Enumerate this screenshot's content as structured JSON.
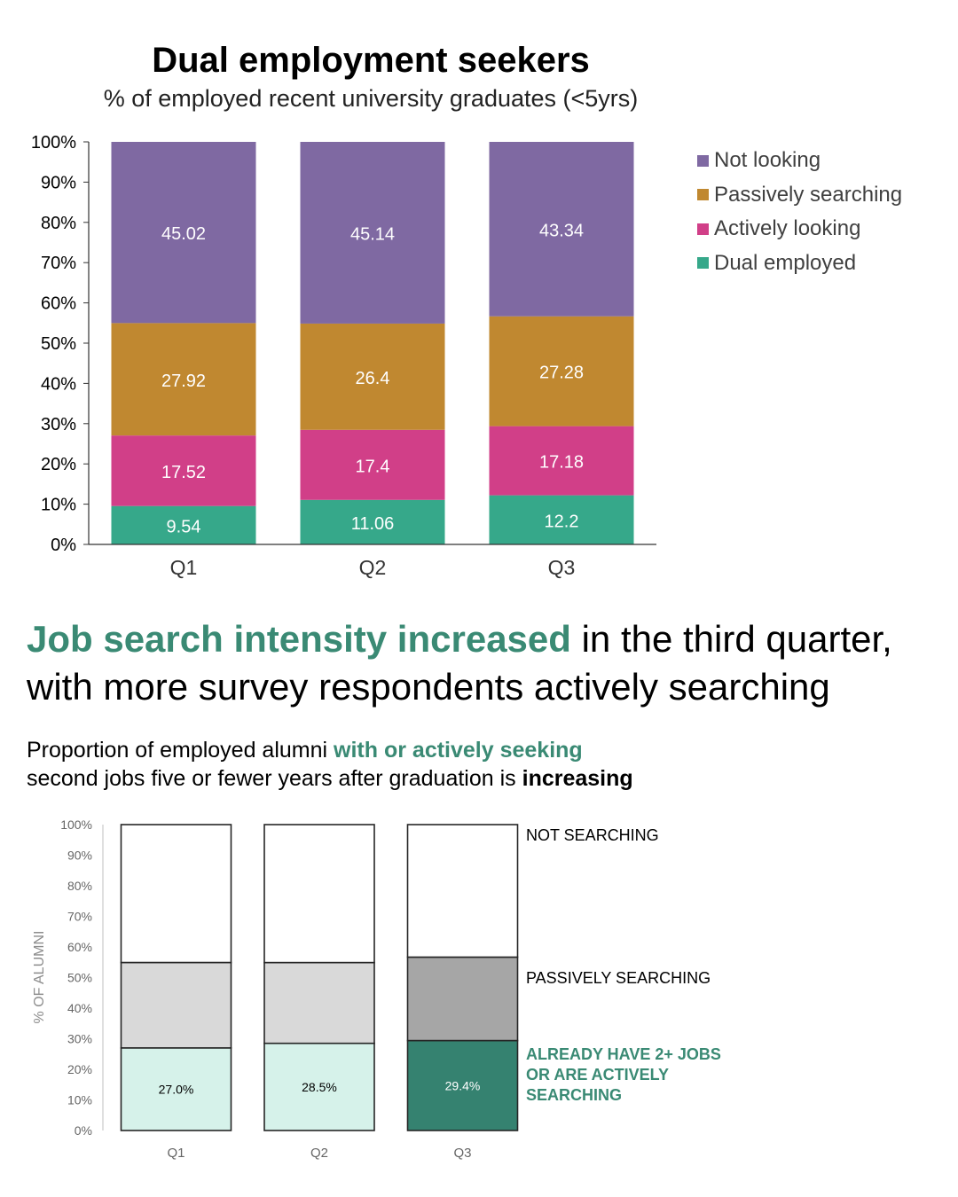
{
  "chart_data": [
    {
      "type": "bar",
      "stacked": true,
      "title": "Dual employment seekers",
      "subtitle": "% of employed recent university graduates (<5yrs)",
      "categories": [
        "Q1",
        "Q2",
        "Q3"
      ],
      "series": [
        {
          "name": "Dual employed",
          "values": [
            9.54,
            11.06,
            12.2
          ],
          "color": "#36a88a"
        },
        {
          "name": "Actively looking",
          "values": [
            17.52,
            17.4,
            17.18
          ],
          "color": "#d13f88"
        },
        {
          "name": "Passively searching",
          "values": [
            27.92,
            26.4,
            27.28
          ],
          "color": "#c08830"
        },
        {
          "name": "Not looking",
          "values": [
            45.02,
            45.14,
            43.34
          ],
          "color": "#7f69a2"
        }
      ],
      "data_labels": [
        [
          "9.54",
          "11.06",
          "12.2"
        ],
        [
          "17.52",
          "17.4",
          "17.18"
        ],
        [
          "27.92",
          "26.4",
          "27.28"
        ],
        [
          "45.02",
          "45.14",
          "43.34"
        ]
      ],
      "legend_order": [
        "Not looking",
        "Passively searching",
        "Actively looking",
        "Dual employed"
      ],
      "legend_position": "right",
      "yticks": [
        "0%",
        "10%",
        "20%",
        "30%",
        "40%",
        "50%",
        "60%",
        "70%",
        "80%",
        "90%",
        "100%"
      ],
      "ylim": [
        0,
        100
      ],
      "xlabel": "",
      "ylabel": ""
    },
    {
      "type": "bar",
      "stacked": true,
      "categories": [
        "Q1",
        "Q2",
        "Q3"
      ],
      "series": [
        {
          "name": "ALREADY HAVE 2+ JOBS OR ARE ACTIVELY SEARCHING",
          "values": [
            27.0,
            28.5,
            29.4
          ],
          "colors": [
            "#d6f2ea",
            "#d6f2ea",
            "#358270"
          ]
        },
        {
          "name": "PASSIVELY SEARCHING",
          "values": [
            27.92,
            26.4,
            27.28
          ],
          "colors": [
            "#d9d9d9",
            "#d9d9d9",
            "#a6a6a6"
          ]
        },
        {
          "name": "NOT SEARCHING",
          "values": [
            45.08,
            45.1,
            43.32
          ],
          "colors": [
            "#ffffff",
            "#ffffff",
            "#ffffff"
          ]
        }
      ],
      "data_labels": [
        "27.0%",
        "28.5%",
        "29.4%"
      ],
      "data_label_colors": [
        "#000000",
        "#000000",
        "#ffffff"
      ],
      "yticks": [
        "0%",
        "10%",
        "20%",
        "30%",
        "40%",
        "50%",
        "60%",
        "70%",
        "80%",
        "90%",
        "100%"
      ],
      "ylim": [
        0,
        100
      ],
      "ylabel": "% OF ALUMNI",
      "xlabel": "",
      "series_labels": {
        "not_searching": "NOT SEARCHING",
        "passively": "PASSIVELY SEARCHING",
        "active_line1": "ALREADY HAVE 2+ JOBS",
        "active_line2": "OR ARE ACTIVELY",
        "active_line3": "SEARCHING"
      }
    }
  ],
  "headline": {
    "accent": "Job search intensity increased",
    "rest1": " in the third quarter,",
    "rest2": "with more survey respondents actively searching"
  },
  "subhead": {
    "part1": "Proportion of employed alumni ",
    "accent": "with or actively seeking",
    "part2": "second jobs five or fewer years after graduation is ",
    "bold": "increasing"
  }
}
